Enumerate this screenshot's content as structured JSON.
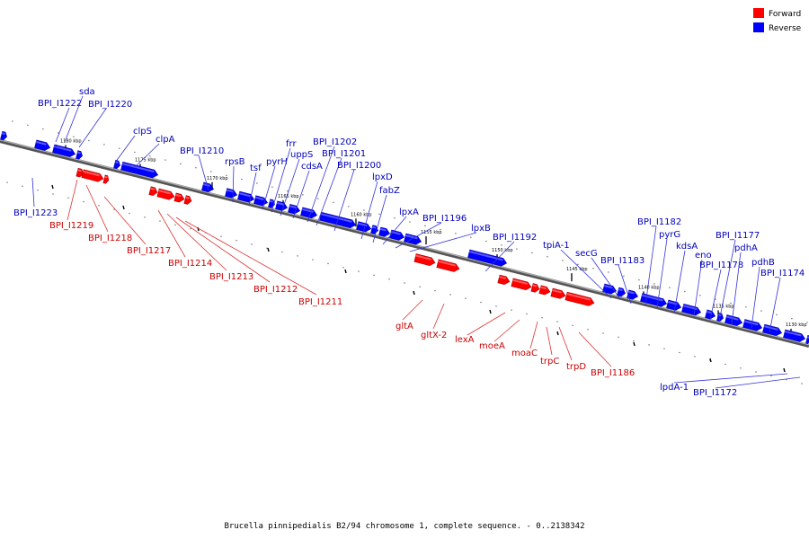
{
  "caption": "Brucella pinnipedialis B2/94 chromosome 1, complete sequence. - 0..2138342",
  "legend": [
    {
      "label": "Forward",
      "color": "#ff0000"
    },
    {
      "label": "Reverse",
      "color": "#0000ff"
    }
  ],
  "ticks": [
    "1180 kbp",
    "1175 kbp",
    "1170 kbp",
    "1165 kbp",
    "1160 kbp",
    "1155 kbp",
    "1150 kbp",
    "1145 kbp",
    "1140 kbp",
    "1135 kbp",
    "1130 kbp"
  ],
  "genes": [
    {
      "name": "BPI_I1222",
      "strand": "reverse"
    },
    {
      "name": "sda",
      "strand": "reverse"
    },
    {
      "name": "BPI_I1220",
      "strand": "reverse"
    },
    {
      "name": "clpS",
      "strand": "reverse"
    },
    {
      "name": "clpA",
      "strand": "reverse"
    },
    {
      "name": "BPI_I1210",
      "strand": "reverse"
    },
    {
      "name": "rpsB",
      "strand": "reverse"
    },
    {
      "name": "tsf",
      "strand": "reverse"
    },
    {
      "name": "pyrH",
      "strand": "reverse"
    },
    {
      "name": "frr",
      "strand": "reverse"
    },
    {
      "name": "uppS",
      "strand": "reverse"
    },
    {
      "name": "cdsA",
      "strand": "reverse"
    },
    {
      "name": "BPI_I1202",
      "strand": "reverse"
    },
    {
      "name": "BPI_I1201",
      "strand": "reverse"
    },
    {
      "name": "BPI_I1200",
      "strand": "reverse"
    },
    {
      "name": "lpxD",
      "strand": "reverse"
    },
    {
      "name": "fabZ",
      "strand": "reverse"
    },
    {
      "name": "lpxA",
      "strand": "reverse"
    },
    {
      "name": "BPI_I1196",
      "strand": "reverse"
    },
    {
      "name": "lpxB",
      "strand": "reverse"
    },
    {
      "name": "BPI_I1192",
      "strand": "reverse"
    },
    {
      "name": "tpiA-1",
      "strand": "reverse"
    },
    {
      "name": "secG",
      "strand": "reverse"
    },
    {
      "name": "BPI_I1183",
      "strand": "reverse"
    },
    {
      "name": "BPI_I1182",
      "strand": "reverse"
    },
    {
      "name": "pyrG",
      "strand": "reverse"
    },
    {
      "name": "kdsA",
      "strand": "reverse"
    },
    {
      "name": "eno",
      "strand": "reverse"
    },
    {
      "name": "BPI_I1178",
      "strand": "reverse"
    },
    {
      "name": "BPI_I1177",
      "strand": "reverse"
    },
    {
      "name": "pdhA",
      "strand": "reverse"
    },
    {
      "name": "pdhB",
      "strand": "reverse"
    },
    {
      "name": "BPI_I1174",
      "strand": "reverse"
    },
    {
      "name": "BPI_I1223",
      "strand": "reverse"
    },
    {
      "name": "lpdA-1",
      "strand": "reverse"
    },
    {
      "name": "BPI_I1172",
      "strand": "reverse"
    },
    {
      "name": "BPI_I1219",
      "strand": "forward"
    },
    {
      "name": "BPI_I1218",
      "strand": "forward"
    },
    {
      "name": "BPI_I1217",
      "strand": "forward"
    },
    {
      "name": "BPI_I1214",
      "strand": "forward"
    },
    {
      "name": "BPI_I1213",
      "strand": "forward"
    },
    {
      "name": "BPI_I1212",
      "strand": "forward"
    },
    {
      "name": "BPI_I1211",
      "strand": "forward"
    },
    {
      "name": "gltA",
      "strand": "forward"
    },
    {
      "name": "gltX-2",
      "strand": "forward"
    },
    {
      "name": "lexA",
      "strand": "forward"
    },
    {
      "name": "moeA",
      "strand": "forward"
    },
    {
      "name": "moaC",
      "strand": "forward"
    },
    {
      "name": "trpC",
      "strand": "forward"
    },
    {
      "name": "trpD",
      "strand": "forward"
    },
    {
      "name": "BPI_I1186",
      "strand": "forward"
    }
  ]
}
